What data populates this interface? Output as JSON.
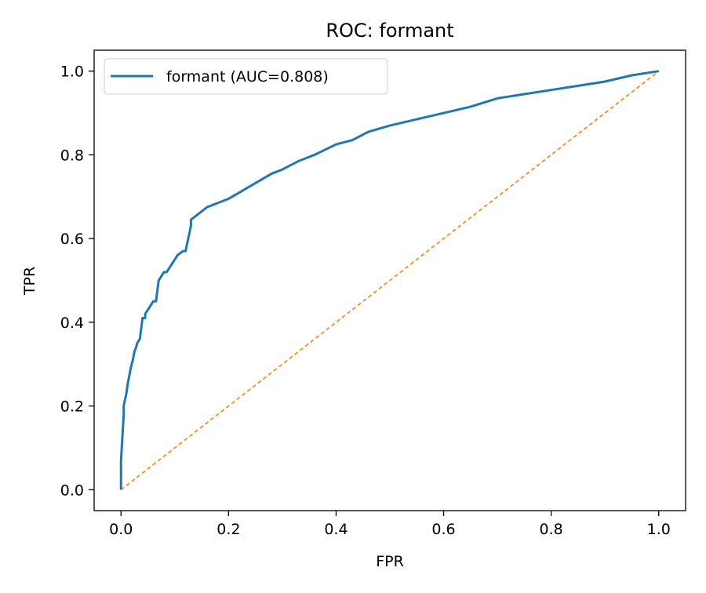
{
  "chart_data": {
    "type": "line",
    "title": "ROC: formant",
    "xlabel": "FPR",
    "ylabel": "TPR",
    "xlim": [
      -0.05,
      1.05
    ],
    "ylim": [
      -0.05,
      1.05
    ],
    "xticks": [
      "0.0",
      "0.2",
      "0.4",
      "0.6",
      "0.8",
      "1.0"
    ],
    "yticks": [
      "0.0",
      "0.2",
      "0.4",
      "0.6",
      "0.8",
      "1.0"
    ],
    "grid": false,
    "legend_position": "upper-left",
    "series": [
      {
        "name": "formant (AUC=0.808)",
        "color": "#1f77b4",
        "style": "solid",
        "x": [
          0,
          0,
          0.005,
          0.005,
          0.01,
          0.012,
          0.015,
          0.018,
          0.02,
          0.022,
          0.025,
          0.028,
          0.03,
          0.035,
          0.04,
          0.045,
          0.045,
          0.05,
          0.055,
          0.06,
          0.065,
          0.07,
          0.075,
          0.08,
          0.085,
          0.09,
          0.095,
          0.1,
          0.105,
          0.11,
          0.115,
          0.12,
          0.13,
          0.13,
          0.135,
          0.14,
          0.15,
          0.16,
          0.17,
          0.18,
          0.19,
          0.2,
          0.22,
          0.24,
          0.26,
          0.28,
          0.3,
          0.33,
          0.36,
          0.4,
          0.43,
          0.46,
          0.5,
          0.55,
          0.6,
          0.65,
          0.7,
          0.75,
          0.8,
          0.85,
          0.9,
          0.95,
          1.0
        ],
        "y": [
          0,
          0.07,
          0.18,
          0.2,
          0.23,
          0.25,
          0.27,
          0.29,
          0.3,
          0.31,
          0.33,
          0.34,
          0.35,
          0.36,
          0.41,
          0.41,
          0.42,
          0.43,
          0.44,
          0.45,
          0.45,
          0.5,
          0.51,
          0.52,
          0.52,
          0.53,
          0.54,
          0.55,
          0.56,
          0.565,
          0.57,
          0.57,
          0.63,
          0.645,
          0.65,
          0.655,
          0.665,
          0.675,
          0.68,
          0.685,
          0.69,
          0.695,
          0.71,
          0.725,
          0.74,
          0.755,
          0.765,
          0.785,
          0.8,
          0.825,
          0.835,
          0.855,
          0.87,
          0.885,
          0.9,
          0.915,
          0.935,
          0.945,
          0.955,
          0.965,
          0.975,
          0.99,
          1.0
        ]
      },
      {
        "name": "",
        "color": "#ff7f0e",
        "style": "dashed",
        "x": [
          0,
          1
        ],
        "y": [
          0,
          1
        ]
      }
    ]
  }
}
